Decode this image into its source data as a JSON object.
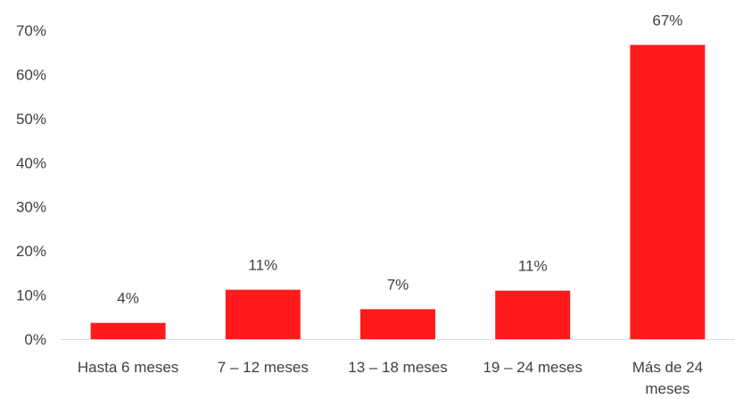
{
  "chart_data": {
    "type": "bar",
    "categories": [
      "Hasta 6 meses",
      "7 – 12 meses",
      "13 – 18 meses",
      "19 – 24 meses",
      "Más de 24 meses"
    ],
    "category_lines": [
      [
        "Hasta 6 meses"
      ],
      [
        "7 – 12 meses"
      ],
      [
        "13 – 18 meses"
      ],
      [
        "19 – 24 meses"
      ],
      [
        "Más de 24",
        "meses"
      ]
    ],
    "values": [
      3.7,
      11.2,
      6.8,
      11.0,
      66.7
    ],
    "data_labels": [
      "4%",
      "11%",
      "7%",
      "11%",
      "67%"
    ],
    "y_ticks": [
      "0%",
      "10%",
      "20%",
      "30%",
      "40%",
      "50%",
      "60%",
      "70%"
    ],
    "ylim": [
      0,
      70
    ],
    "grid": false,
    "legend": "none",
    "bar_color": "#FF1B1B",
    "axis_color": "#D9D9D9",
    "text_color": "#404040"
  }
}
